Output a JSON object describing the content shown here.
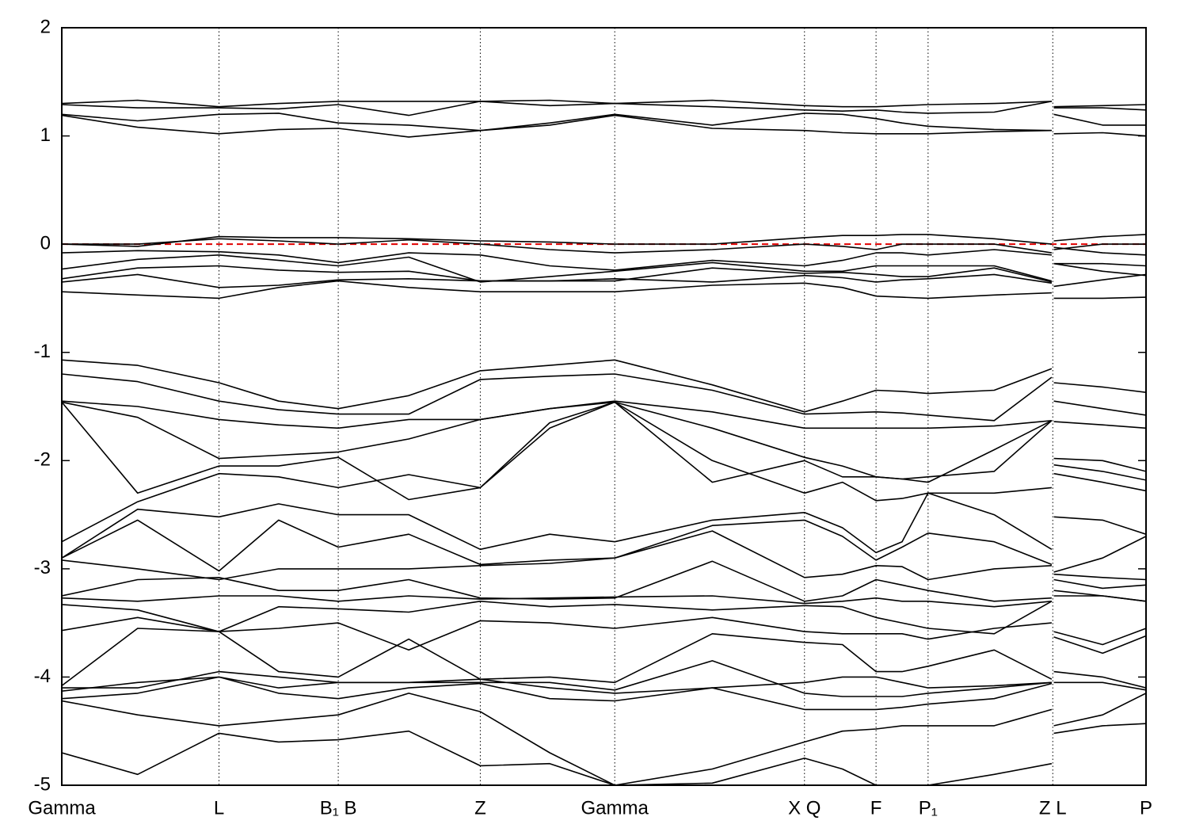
{
  "chart_data": {
    "type": "line",
    "x": [
      0,
      0.07,
      0.145,
      0.2,
      0.255,
      0.32,
      0.386,
      0.45,
      0.51,
      0.6,
      0.685,
      0.72,
      0.751,
      0.775,
      0.799,
      0.86,
      0.913,
      0.914,
      0.915,
      0.96,
      1.0
    ],
    "xlim": [
      0,
      1
    ],
    "xticks": [
      {
        "value": 0,
        "label": "Gamma"
      },
      {
        "value": 0.145,
        "label": "L"
      },
      {
        "value": 0.255,
        "label": "B₁ B"
      },
      {
        "value": 0.386,
        "label": "Z"
      },
      {
        "value": 0.51,
        "label": "Gamma"
      },
      {
        "value": 0.685,
        "label": "X Q"
      },
      {
        "value": 0.751,
        "label": "F"
      },
      {
        "value": 0.799,
        "label": "P₁"
      },
      {
        "value": 0.914,
        "label": "Z L"
      },
      {
        "value": 1.0,
        "label": "P"
      }
    ],
    "xgrid": true,
    "ylim": [
      -5,
      2
    ],
    "yticks": [
      -5,
      -4,
      -3,
      -2,
      -1,
      0,
      1,
      2
    ],
    "hline": {
      "value": 0,
      "color": "#e00000"
    },
    "series": [
      {
        "color": "#000000",
        "values": [
          1.3,
          1.33,
          1.27,
          1.3,
          1.32,
          1.32,
          1.32,
          1.33,
          1.3,
          1.33,
          1.28,
          1.27,
          1.27,
          1.28,
          1.29,
          1.3,
          1.32,
          null,
          1.27,
          1.28,
          1.29
        ]
      },
      {
        "color": "#000000",
        "values": [
          1.29,
          1.26,
          1.26,
          1.25,
          1.29,
          1.19,
          1.32,
          1.28,
          1.3,
          1.27,
          1.24,
          1.23,
          1.24,
          1.22,
          1.21,
          1.22,
          1.32,
          null,
          1.26,
          1.26,
          1.24
        ]
      },
      {
        "color": "#000000",
        "values": [
          1.2,
          1.14,
          1.2,
          1.21,
          1.12,
          1.1,
          1.05,
          1.12,
          1.2,
          1.1,
          1.21,
          1.2,
          1.16,
          1.12,
          1.09,
          1.06,
          1.05,
          null,
          1.2,
          1.1,
          1.1
        ]
      },
      {
        "color": "#000000",
        "values": [
          1.19,
          1.08,
          1.02,
          1.06,
          1.07,
          0.99,
          1.05,
          1.1,
          1.19,
          1.07,
          1.05,
          1.03,
          1.02,
          1.02,
          1.02,
          1.04,
          1.05,
          null,
          1.02,
          1.03,
          1.0
        ]
      },
      {
        "color": "#000000",
        "values": [
          0.0,
          -0.02,
          0.07,
          0.06,
          0.06,
          0.05,
          0.03,
          0.02,
          0.0,
          0.0,
          0.06,
          0.08,
          0.08,
          0.09,
          0.09,
          0.05,
          0.0,
          null,
          0.03,
          0.07,
          0.09
        ]
      },
      {
        "color": "#000000",
        "values": [
          0.0,
          0.0,
          0.05,
          0.03,
          0.0,
          0.04,
          0.0,
          -0.05,
          -0.08,
          -0.05,
          0.0,
          -0.02,
          -0.05,
          0.0,
          0.0,
          0.0,
          -0.08,
          null,
          -0.05,
          0.0,
          0.0
        ]
      },
      {
        "color": "#000000",
        "values": [
          -0.08,
          -0.06,
          -0.07,
          -0.1,
          -0.17,
          -0.08,
          -0.1,
          -0.2,
          -0.24,
          -0.15,
          -0.2,
          -0.15,
          -0.08,
          -0.08,
          -0.1,
          -0.05,
          -0.1,
          null,
          -0.03,
          -0.08,
          -0.1
        ]
      },
      {
        "color": "#000000",
        "values": [
          -0.23,
          -0.14,
          -0.1,
          -0.15,
          -0.2,
          -0.12,
          -0.35,
          -0.3,
          -0.25,
          -0.17,
          -0.25,
          -0.25,
          -0.2,
          -0.2,
          -0.2,
          -0.2,
          -0.34,
          null,
          -0.18,
          -0.18,
          -0.2
        ]
      },
      {
        "color": "#000000",
        "values": [
          -0.32,
          -0.22,
          -0.2,
          -0.24,
          -0.26,
          -0.25,
          -0.34,
          -0.34,
          -0.34,
          -0.22,
          -0.27,
          -0.26,
          -0.28,
          -0.3,
          -0.3,
          -0.22,
          -0.35,
          null,
          -0.18,
          -0.25,
          -0.29
        ]
      },
      {
        "color": "#000000",
        "values": [
          -0.35,
          -0.28,
          -0.4,
          -0.38,
          -0.33,
          -0.32,
          -0.34,
          -0.34,
          -0.32,
          -0.35,
          -0.29,
          -0.31,
          -0.35,
          -0.33,
          -0.32,
          -0.28,
          -0.36,
          null,
          -0.39,
          -0.33,
          -0.28
        ]
      },
      {
        "color": "#000000",
        "values": [
          -0.44,
          -0.47,
          -0.5,
          -0.4,
          -0.34,
          -0.4,
          -0.44,
          -0.44,
          -0.44,
          -0.38,
          -0.36,
          -0.4,
          -0.48,
          -0.49,
          -0.5,
          -0.47,
          -0.45,
          null,
          -0.5,
          -0.5,
          -0.49
        ]
      },
      {
        "color": "#000000",
        "values": [
          -1.07,
          -1.12,
          -1.28,
          -1.45,
          -1.52,
          -1.4,
          -1.17,
          -1.12,
          -1.07,
          -1.3,
          -1.55,
          -1.45,
          -1.35,
          -1.36,
          -1.38,
          -1.35,
          -1.15,
          null,
          -1.28,
          -1.32,
          -1.37
        ]
      },
      {
        "color": "#000000",
        "values": [
          -1.2,
          -1.27,
          -1.45,
          -1.53,
          -1.57,
          -1.57,
          -1.25,
          -1.22,
          -1.2,
          -1.35,
          -1.57,
          -1.56,
          -1.55,
          -1.56,
          -1.58,
          -1.63,
          -1.23,
          null,
          -1.45,
          -1.52,
          -1.58
        ]
      },
      {
        "color": "#000000",
        "values": [
          -1.45,
          -1.5,
          -1.62,
          -1.67,
          -1.7,
          -1.62,
          -1.62,
          -1.52,
          -1.45,
          -1.55,
          -1.7,
          -1.7,
          -1.7,
          -1.7,
          -1.7,
          -1.68,
          -1.63,
          null,
          -1.64,
          -1.67,
          -1.7
        ]
      },
      {
        "color": "#000000",
        "values": [
          -1.46,
          -1.6,
          -1.98,
          -1.95,
          -1.92,
          -1.8,
          -1.62,
          -1.52,
          -1.46,
          -1.7,
          -1.97,
          -2.05,
          -2.15,
          -2.17,
          -2.2,
          -1.9,
          -1.63,
          null,
          -1.98,
          -2.0,
          -2.1
        ]
      },
      {
        "color": "#000000",
        "values": [
          -1.46,
          -2.3,
          -2.05,
          -2.05,
          -1.97,
          -2.36,
          -2.25,
          -1.65,
          -1.46,
          -2.2,
          -2.0,
          -2.15,
          -2.15,
          -2.17,
          -2.15,
          -2.1,
          -1.63,
          null,
          -2.04,
          -2.1,
          -2.18
        ]
      },
      {
        "color": "#000000",
        "values": [
          -2.75,
          -2.38,
          -2.12,
          -2.15,
          -2.25,
          -2.13,
          -2.25,
          -1.7,
          -1.46,
          -2.0,
          -2.3,
          -2.2,
          -2.37,
          -2.35,
          -2.3,
          -2.3,
          -2.25,
          null,
          -2.12,
          -2.2,
          -2.28
        ]
      },
      {
        "color": "#000000",
        "values": [
          -2.9,
          -2.45,
          -2.52,
          -2.4,
          -2.5,
          -2.5,
          -2.82,
          -2.68,
          -2.75,
          -2.55,
          -2.48,
          -2.62,
          -2.85,
          -2.75,
          -2.3,
          -2.5,
          -2.82,
          null,
          -2.52,
          -2.55,
          -2.68
        ]
      },
      {
        "color": "#000000",
        "values": [
          -2.9,
          -2.55,
          -3.02,
          -2.55,
          -2.8,
          -2.68,
          -2.96,
          -2.92,
          -2.9,
          -2.6,
          -2.55,
          -2.7,
          -2.92,
          -2.8,
          -2.67,
          -2.75,
          -2.96,
          null,
          -3.03,
          -2.9,
          -2.7
        ]
      },
      {
        "color": "#000000",
        "values": [
          -2.92,
          -3.0,
          -3.1,
          -3.0,
          -3.0,
          -3.0,
          -2.97,
          -2.95,
          -2.9,
          -2.65,
          -3.08,
          -3.05,
          -2.97,
          -2.98,
          -3.1,
          -3.0,
          -2.97,
          null,
          -3.05,
          -3.08,
          -3.1
        ]
      },
      {
        "color": "#000000",
        "values": [
          -3.25,
          -3.1,
          -3.08,
          -3.2,
          -3.2,
          -3.1,
          -3.27,
          -3.28,
          -3.27,
          -2.93,
          -3.3,
          -3.25,
          -3.1,
          -3.15,
          -3.2,
          -3.3,
          -3.27,
          null,
          -3.1,
          -3.18,
          -3.15
        ]
      },
      {
        "color": "#000000",
        "values": [
          -3.27,
          -3.3,
          -3.25,
          -3.25,
          -3.3,
          -3.25,
          -3.28,
          -3.27,
          -3.26,
          -3.25,
          -3.32,
          -3.3,
          -3.27,
          -3.3,
          -3.3,
          -3.35,
          -3.3,
          null,
          -3.2,
          -3.25,
          -3.3
        ]
      },
      {
        "color": "#000000",
        "values": [
          -3.33,
          -3.38,
          -3.58,
          -3.35,
          -3.37,
          -3.4,
          -3.3,
          -3.35,
          -3.33,
          -3.38,
          -3.34,
          -3.35,
          -3.45,
          -3.5,
          -3.55,
          -3.6,
          -3.3,
          null,
          -3.25,
          -3.25,
          -3.3
        ]
      },
      {
        "color": "#000000",
        "values": [
          -3.57,
          -3.45,
          -3.58,
          -3.55,
          -3.5,
          -3.75,
          -3.48,
          -3.5,
          -3.55,
          -3.45,
          -3.58,
          -3.6,
          -3.6,
          -3.6,
          -3.65,
          -3.55,
          -3.5,
          null,
          -3.58,
          -3.7,
          -3.55
        ]
      },
      {
        "color": "#000000",
        "values": [
          -4.08,
          -3.55,
          -3.58,
          -3.95,
          -4.0,
          -3.65,
          -4.02,
          -4.0,
          -4.05,
          -3.6,
          -3.68,
          -3.7,
          -3.95,
          -3.95,
          -3.9,
          -3.75,
          -4.02,
          null,
          -3.63,
          -3.78,
          -3.62
        ]
      },
      {
        "color": "#000000",
        "values": [
          -4.1,
          -4.1,
          -3.95,
          -4.0,
          -4.05,
          -4.05,
          -4.02,
          -4.1,
          -4.15,
          -4.1,
          -4.05,
          -4.0,
          -4.0,
          -4.05,
          -4.1,
          -4.08,
          -4.05,
          null,
          -3.95,
          -4.0,
          -4.1
        ]
      },
      {
        "color": "#000000",
        "values": [
          -4.13,
          -4.05,
          -4.0,
          -4.1,
          -4.05,
          -4.05,
          -4.05,
          -4.05,
          -4.12,
          -3.85,
          -4.15,
          -4.18,
          -4.18,
          -4.18,
          -4.15,
          -4.1,
          -4.05,
          null,
          -4.05,
          -4.05,
          -4.12
        ]
      },
      {
        "color": "#000000",
        "values": [
          -4.2,
          -4.15,
          -4.0,
          -4.15,
          -4.2,
          -4.1,
          -4.06,
          -4.2,
          -4.22,
          -4.1,
          -4.3,
          -4.3,
          -4.3,
          -4.28,
          -4.25,
          -4.2,
          -4.06,
          null,
          -4.45,
          -4.35,
          -4.15
        ]
      },
      {
        "color": "#000000",
        "values": [
          -4.22,
          -4.35,
          -4.45,
          -4.4,
          -4.35,
          -4.15,
          -4.32,
          -4.7,
          -5.0,
          -4.85,
          -4.6,
          -4.5,
          -4.48,
          -4.45,
          -4.45,
          -4.45,
          -4.3,
          null,
          -4.52,
          -4.45,
          -4.43
        ]
      },
      {
        "color": "#000000",
        "values": [
          -4.7,
          -4.9,
          -4.52,
          -4.6,
          -4.58,
          -4.5,
          -4.82,
          -4.8,
          -5.0,
          -4.98,
          -4.75,
          -4.85,
          -5.0,
          -5.0,
          -5.0,
          -4.9,
          -4.8,
          null,
          null,
          null,
          null
        ]
      }
    ]
  }
}
